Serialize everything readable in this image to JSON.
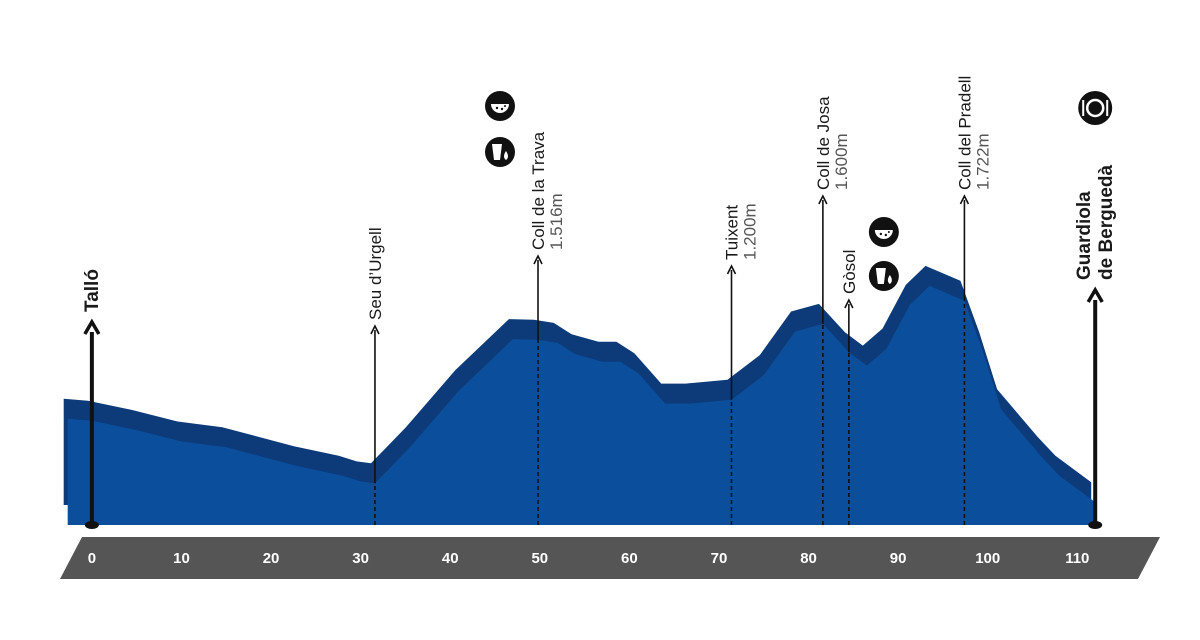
{
  "chart_data": {
    "type": "area",
    "x": [
      -2.7,
      0,
      5,
      10,
      15,
      19,
      23,
      28,
      30,
      31.6,
      35.5,
      41,
      47,
      49.8,
      52,
      54,
      57,
      59,
      61,
      64,
      66.7,
      71.4,
      75,
      78.5,
      81.6,
      84.5,
      86.5,
      88.7,
      91.3,
      93.5,
      97.4,
      99.5,
      101.5,
      106,
      108,
      112
    ],
    "values": [
      1100,
      1090,
      1040,
      980,
      950,
      900,
      850,
      800,
      770,
      760,
      950,
      1250,
      1520,
      1516,
      1500,
      1440,
      1400,
      1400,
      1340,
      1180,
      1180,
      1200,
      1330,
      1560,
      1600,
      1450,
      1380,
      1470,
      1700,
      1800,
      1722,
      1450,
      1150,
      900,
      800,
      660
    ],
    "color": "#0b4f9c",
    "shade_color": "#0d3a78",
    "xlim": [
      -3,
      117
    ],
    "ylim": [
      540,
      2000
    ],
    "xticks": [
      0,
      10,
      20,
      30,
      40,
      50,
      60,
      70,
      80,
      90,
      100,
      110
    ],
    "waypoints": [
      {
        "name": "Talló",
        "km": 0
      },
      {
        "name": "Seu d’Urgell",
        "km": 31.6
      },
      {
        "name": "Coll de la Trava",
        "altitude": "1.516m",
        "km": 49.8
      },
      {
        "name": "Tuixent",
        "altitude": "1.200m",
        "km": 71.4
      },
      {
        "name": "Coll de Josa",
        "altitude": "1.600m",
        "km": 81.6
      },
      {
        "name": "Gòsol",
        "km": 84.5
      },
      {
        "name": "Coll del Pradell",
        "altitude": "1.722m",
        "km": 97.4
      },
      {
        "name": [
          "Guardiola",
          "de Berguedà"
        ],
        "km": 112
      }
    ]
  }
}
